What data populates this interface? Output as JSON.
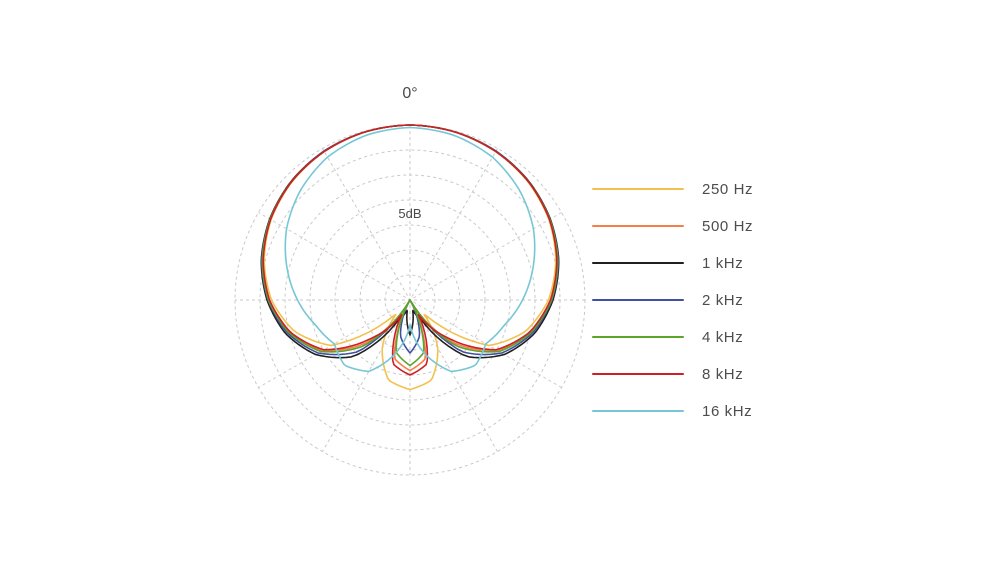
{
  "chart_data": {
    "type": "line",
    "subtype": "polar-pattern",
    "angle_zero_label": "0°",
    "radial_scale_label": "5dB",
    "rings": 7,
    "ring_step_db": 5,
    "db_max": 0,
    "db_min": -35,
    "spoke_step_deg": 30,
    "grid": true,
    "legend_position": "right",
    "angles_deg": [
      0,
      15,
      30,
      45,
      60,
      75,
      90,
      105,
      120,
      135,
      150,
      165,
      180
    ],
    "series": [
      {
        "name": "250 Hz",
        "color": "#f2c14e",
        "values_db": [
          0,
          -0.2,
          -0.7,
          -1.6,
          -2.9,
          -4.8,
          -7.3,
          -11.0,
          -16.8,
          -31.4,
          -23.9,
          -18.4,
          -17.1
        ]
      },
      {
        "name": "500 Hz",
        "color": "#f57e4a",
        "values_db": [
          0,
          -0.2,
          -0.7,
          -1.5,
          -2.8,
          -4.5,
          -6.8,
          -10.1,
          -14.8,
          -23.1,
          -35,
          -22.9,
          -20.9
        ]
      },
      {
        "name": "1 kHz",
        "color": "#231f20",
        "values_db": [
          0,
          -0.2,
          -0.6,
          -1.4,
          -2.6,
          -4.2,
          -6.4,
          -9.2,
          -13.2,
          -19.0,
          -30.5,
          -33.0,
          -28.0
        ]
      },
      {
        "name": "2 kHz",
        "color": "#3f51a3",
        "values_db": [
          0,
          -0.2,
          -0.6,
          -1.5,
          -2.7,
          -4.3,
          -6.6,
          -9.6,
          -13.8,
          -20.4,
          -35,
          -27.6,
          -24.4
        ]
      },
      {
        "name": "4 kHz",
        "color": "#5ba529",
        "values_db": [
          0,
          -0.2,
          -0.7,
          -1.5,
          -2.7,
          -4.4,
          -6.7,
          -9.9,
          -14.4,
          -22.1,
          -35,
          -24.2,
          -21.9
        ]
      },
      {
        "name": "8 kHz",
        "color": "#cc2027",
        "values_db": [
          0,
          -0.2,
          -0.7,
          -1.5,
          -2.8,
          -4.6,
          -6.9,
          -10.2,
          -15.1,
          -24.3,
          -31.6,
          -21.8,
          -20.0
        ]
      },
      {
        "name": "16 kHz",
        "color": "#76c7d6",
        "values_db": [
          -0.5,
          -0.9,
          -2.0,
          -4.0,
          -6.5,
          -9.5,
          -12.5,
          -15.5,
          -17.5,
          -16.5,
          -18.5,
          -24.0,
          -30.0
        ]
      }
    ],
    "grid_color": "#c9c9c9",
    "label_color": "#4a4a4a"
  }
}
